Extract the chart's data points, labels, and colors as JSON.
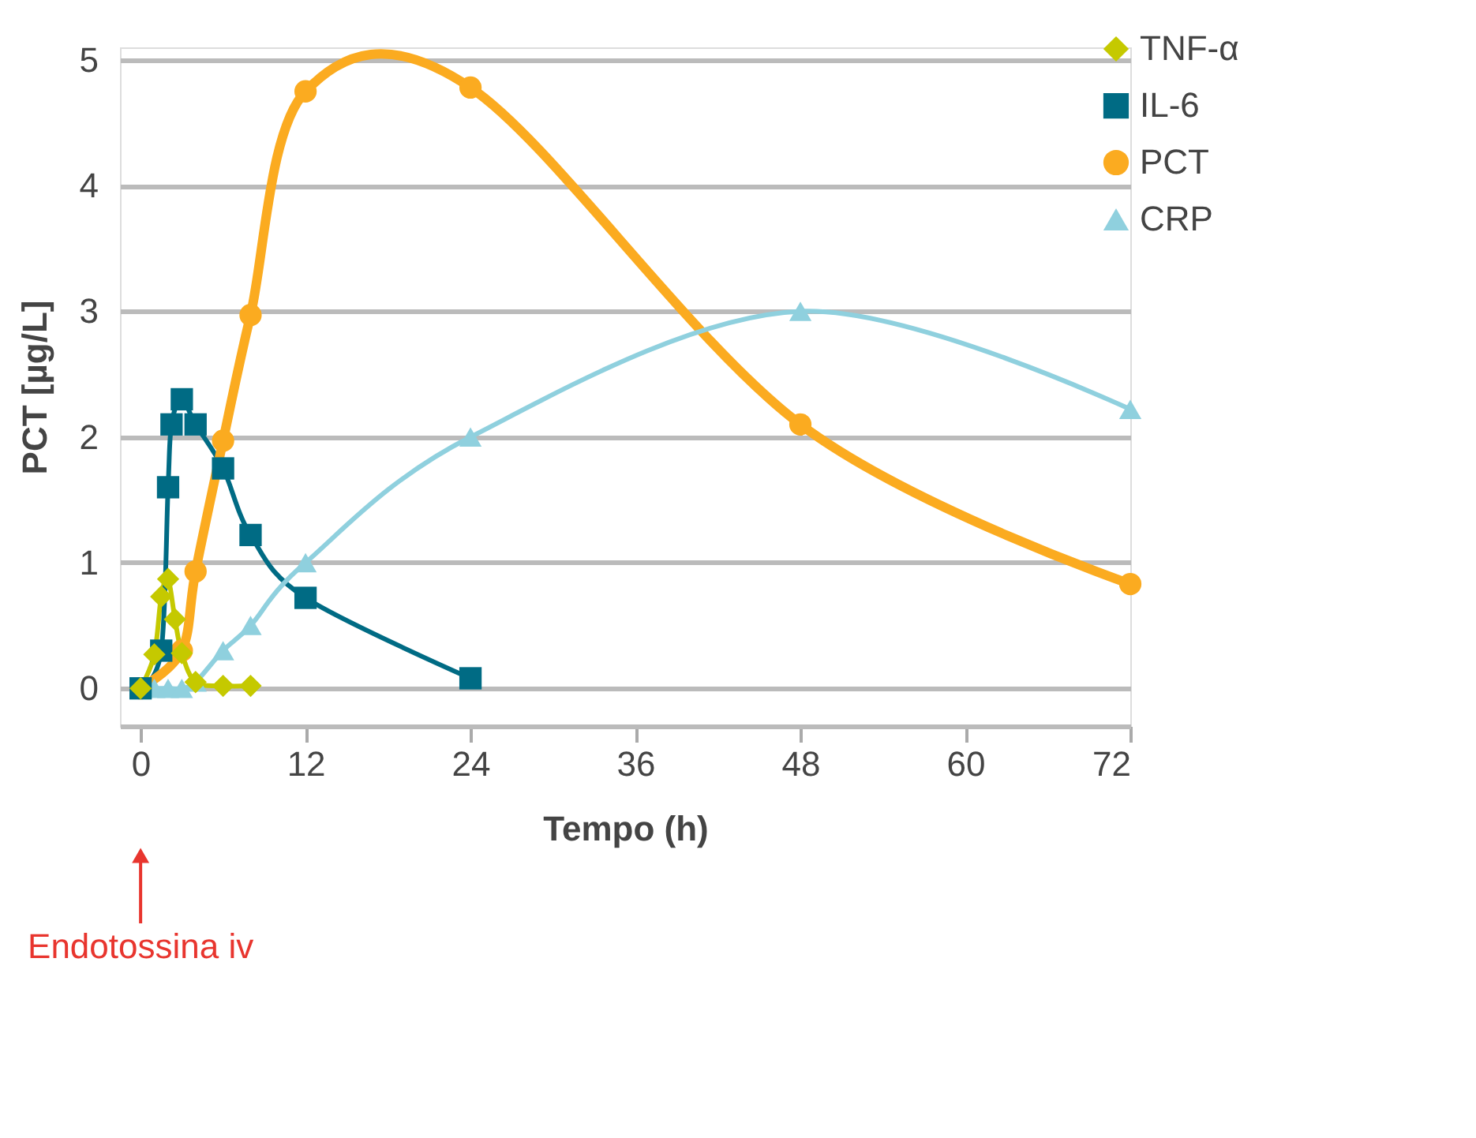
{
  "chart_data": {
    "type": "line",
    "xlabel": "Tempo (h)",
    "ylabel": "PCT [µg/L]",
    "xlim": [
      -1.5,
      72
    ],
    "xticks": [
      0,
      12,
      24,
      36,
      48,
      60,
      72
    ],
    "ylim": [
      -0.3,
      5.1
    ],
    "yticks": [
      0,
      1,
      2,
      3,
      4,
      5
    ],
    "grid": "y",
    "legend": "top right",
    "series": [
      {
        "name": "TNF-α",
        "color": "#c5c900",
        "marker": "diamond",
        "x": [
          0,
          1,
          1.5,
          2,
          2.5,
          3,
          4,
          6,
          8
        ],
        "values": [
          0,
          0.27,
          0.73,
          0.87,
          0.55,
          0.28,
          0.05,
          0.02,
          0.02
        ]
      },
      {
        "name": "IL-6",
        "color": "#006b84",
        "marker": "square",
        "x": [
          0,
          1.5,
          2,
          2.25,
          3,
          4,
          6,
          8,
          12,
          24
        ],
        "values": [
          0,
          0.3,
          1.6,
          2.1,
          2.3,
          2.1,
          1.75,
          1.22,
          0.72,
          0.08
        ]
      },
      {
        "name": "PCT",
        "color": "#fbab20",
        "marker": "circle",
        "x": [
          0,
          3,
          4,
          6,
          8,
          12,
          24,
          48,
          72
        ],
        "values": [
          0,
          0.3,
          0.93,
          1.97,
          2.97,
          4.75,
          4.78,
          2.1,
          0.83
        ]
      },
      {
        "name": "CRP",
        "color": "#8fd0de",
        "marker": "triangle",
        "x": [
          0,
          1,
          2,
          3,
          4,
          6,
          8,
          12,
          24,
          48,
          72
        ],
        "values": [
          0,
          0,
          0,
          0,
          0.05,
          0.3,
          0.5,
          1.0,
          2.0,
          3.0,
          2.22
        ]
      }
    ],
    "annotations": [
      "Endotossina iv"
    ]
  }
}
